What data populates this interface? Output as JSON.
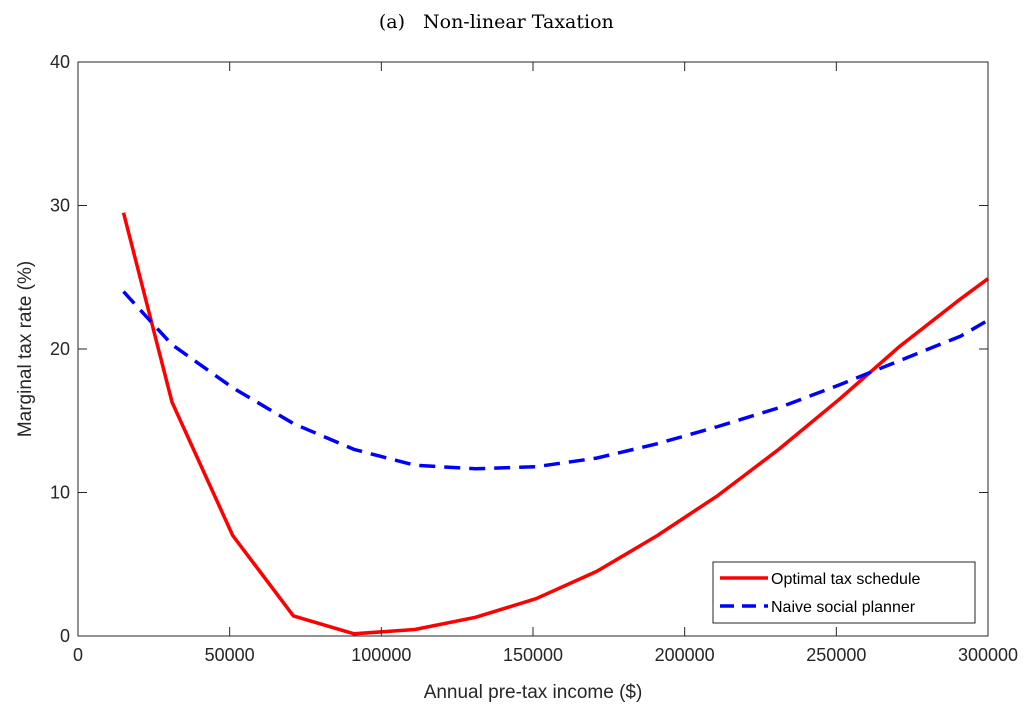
{
  "panel": {
    "label": "(a)",
    "title": "Non-linear Taxation"
  },
  "chart_data": {
    "type": "line",
    "xlabel": "Annual pre-tax income ($)",
    "ylabel": "Marginal tax rate (%)",
    "xlim": [
      0,
      300000
    ],
    "ylim": [
      0,
      40
    ],
    "xticks": [
      0,
      50000,
      100000,
      150000,
      200000,
      250000,
      300000
    ],
    "xtick_labels": [
      "0",
      "50000",
      "100000",
      "150000",
      "200000",
      "250000",
      "300000"
    ],
    "yticks": [
      0,
      10,
      20,
      30,
      40
    ],
    "ytick_labels": [
      "0",
      "10",
      "20",
      "30",
      "40"
    ],
    "grid": false,
    "legend_position": "bottom-right",
    "series": [
      {
        "name": "Optimal tax schedule",
        "color": "#ff0000",
        "style": "solid",
        "x": [
          15000,
          31000,
          51000,
          71000,
          91000,
          111000,
          131000,
          151000,
          171000,
          191000,
          211000,
          231000,
          251000,
          271000,
          291000,
          300000
        ],
        "y": [
          29.5,
          16.3,
          7.0,
          1.4,
          0.15,
          0.45,
          1.3,
          2.6,
          4.5,
          7.0,
          9.8,
          13.0,
          16.5,
          20.2,
          23.5,
          24.9
        ]
      },
      {
        "name": "Naive social planner",
        "color": "#0000ff",
        "style": "dashed",
        "x": [
          15000,
          31000,
          51000,
          71000,
          91000,
          111000,
          131000,
          151000,
          171000,
          191000,
          211000,
          231000,
          251000,
          271000,
          291000,
          300000
        ],
        "y": [
          24.0,
          20.3,
          17.3,
          14.8,
          13.0,
          11.9,
          11.65,
          11.8,
          12.4,
          13.4,
          14.6,
          15.9,
          17.5,
          19.2,
          20.9,
          22.0
        ]
      }
    ]
  }
}
